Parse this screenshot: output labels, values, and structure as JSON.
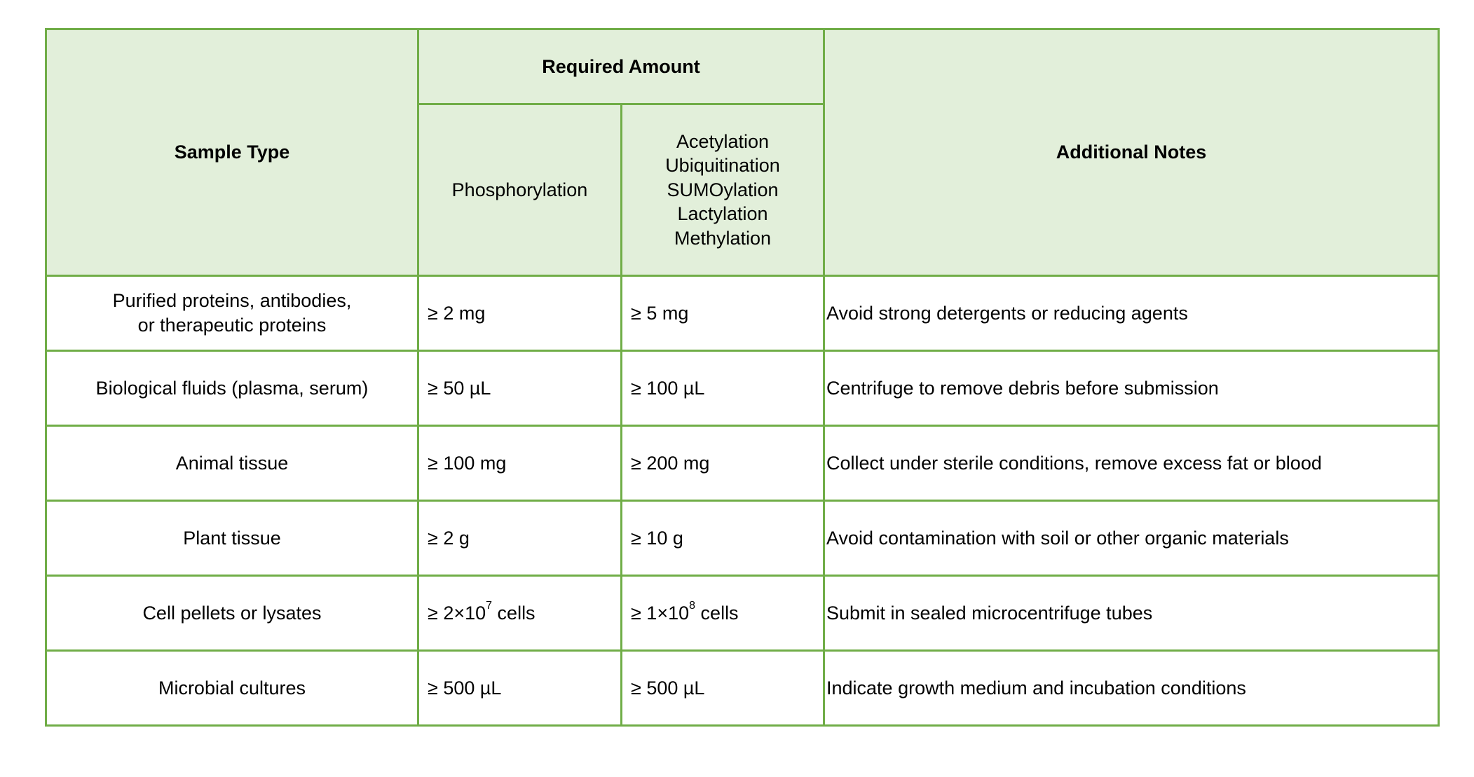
{
  "table": {
    "headers": {
      "sample_type": "Sample Type",
      "required_amount": "Required Amount",
      "phosphorylation": "Phosphorylation",
      "other_ptms": [
        "Acetylation",
        "Ubiquitination",
        "SUMOylation",
        "Lactylation",
        "Methylation"
      ],
      "additional_notes": "Additional Notes"
    },
    "rows": [
      {
        "sample_line1": "Purified proteins, antibodies,",
        "sample_line2": "or therapeutic proteins",
        "phos": "≥ 2 mg",
        "other": "≥ 5 mg",
        "note": "Avoid strong detergents or reducing agents"
      },
      {
        "sample_line1": "Biological fluids (plasma, serum)",
        "sample_line2": "",
        "phos": "≥ 50 µL",
        "other": "≥ 100 µL",
        "note": "Centrifuge to remove debris before submission"
      },
      {
        "sample_line1": "Animal tissue",
        "sample_line2": "",
        "phos": "≥ 100 mg",
        "other": "≥ 200 mg",
        "note": "Collect under sterile conditions, remove excess fat or blood"
      },
      {
        "sample_line1": "Plant tissue",
        "sample_line2": "",
        "phos": "≥ 2 g",
        "other": "≥ 10 g",
        "note": "Avoid contamination with soil or other organic materials"
      },
      {
        "sample_line1": "Cell pellets or lysates",
        "sample_line2": "",
        "phos_prefix": "≥ 2×10",
        "phos_exp": "7",
        "phos_suffix": " cells",
        "other_prefix": "≥ 1×10",
        "other_exp": "8",
        "other_suffix": " cells",
        "note": "Submit in sealed microcentrifuge tubes"
      },
      {
        "sample_line1": "Microbial cultures",
        "sample_line2": "",
        "phos": "≥ 500 µL",
        "other": "≥ 500 µL",
        "note": "Indicate growth medium and incubation conditions"
      }
    ]
  },
  "colors": {
    "border": "#70ad47",
    "header_bg": "#e2efda"
  }
}
